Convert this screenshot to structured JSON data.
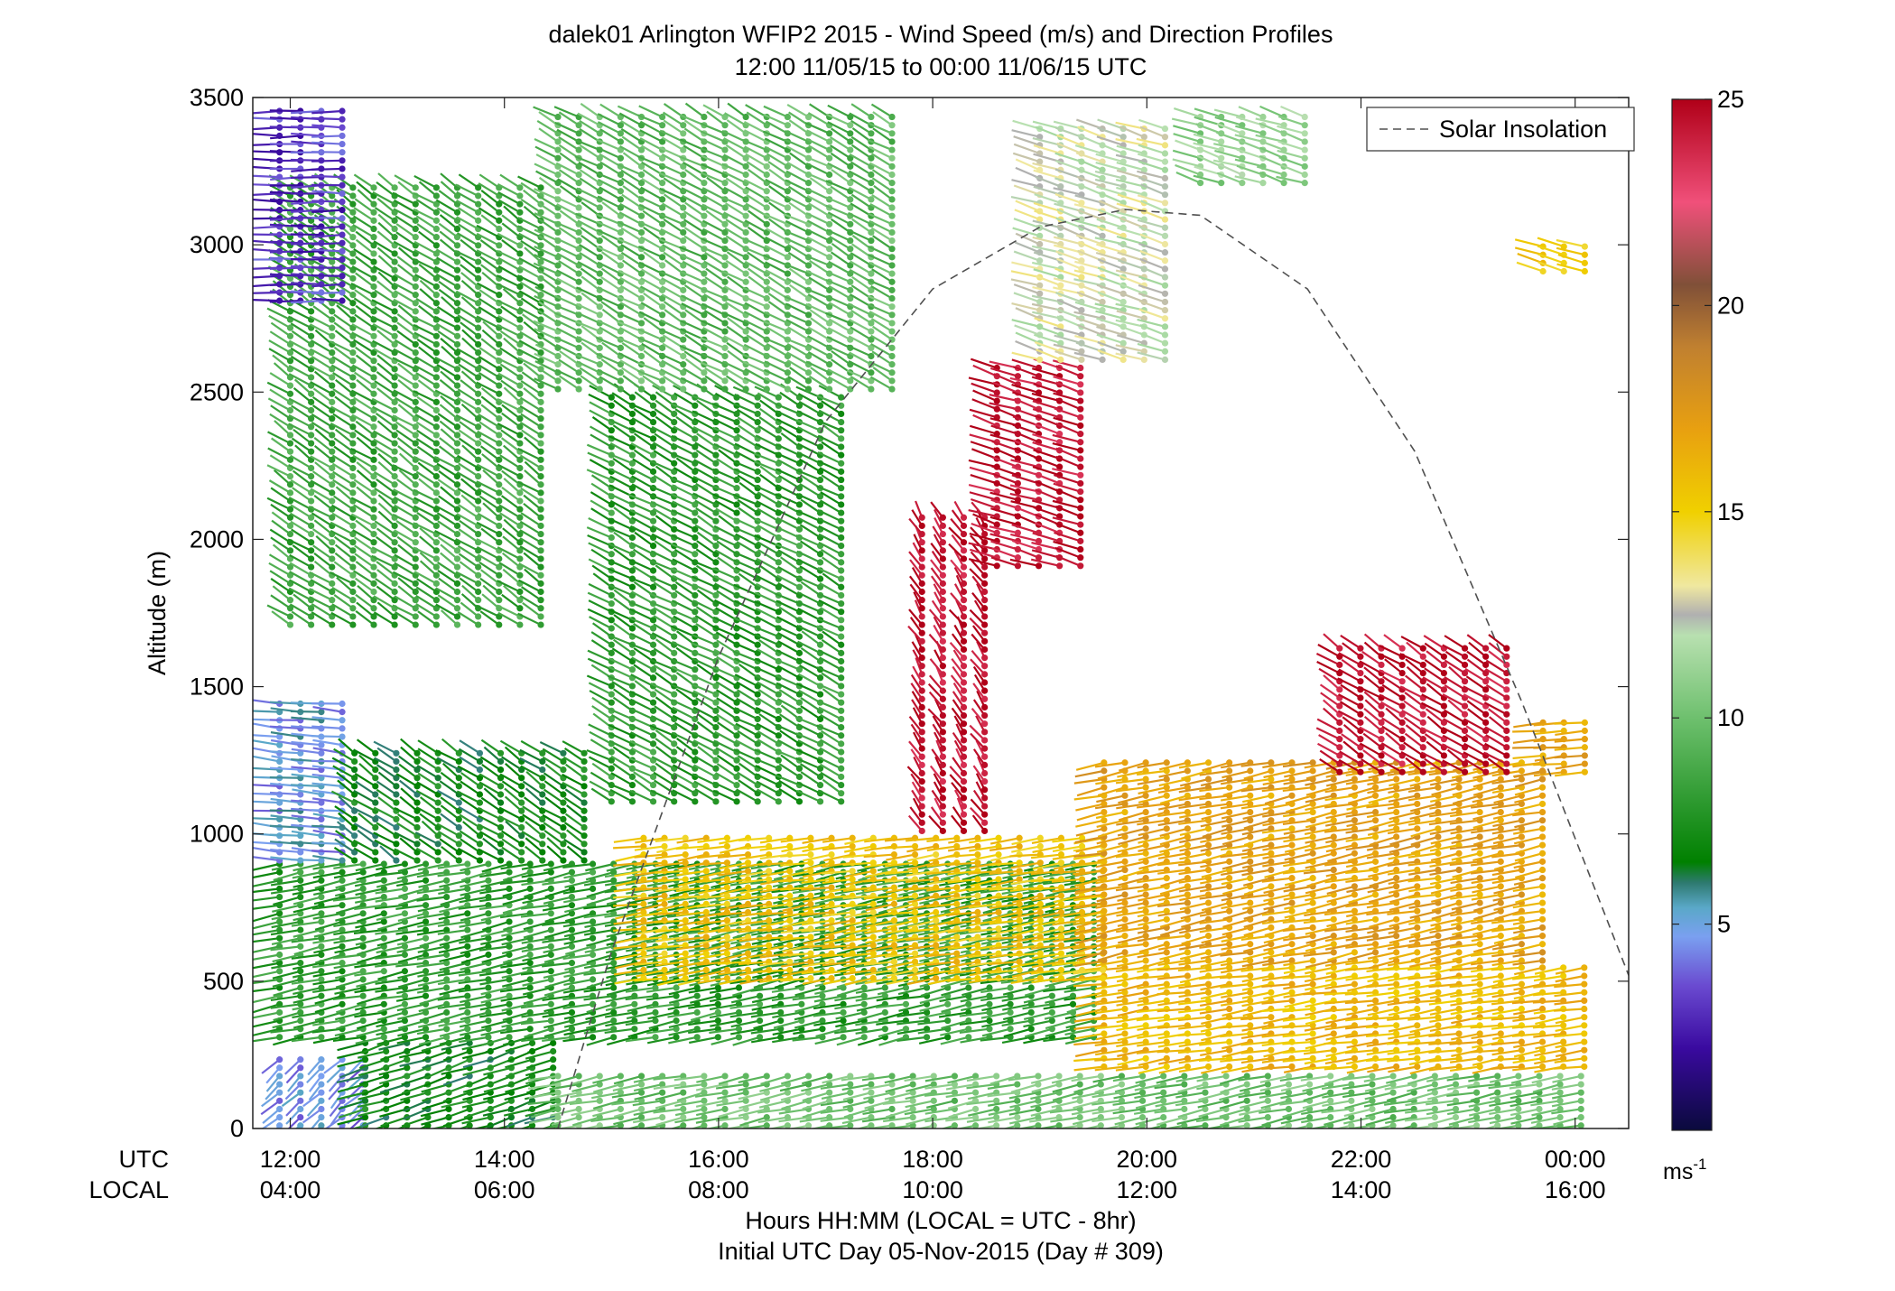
{
  "chart_data": {
    "type": "wind-barb-profile",
    "title": "dalek01 Arlington WFIP2 2015 - Wind Speed (m/s) and Direction Profiles",
    "subtitle": "12:00 11/05/15 to 00:00 11/06/15  UTC",
    "ylabel": "Altitude (m)",
    "xlabel": "Hours HH:MM  (LOCAL = UTC - 8hr)",
    "xlabel2": "Initial UTC Day 05-Nov-2015 (Day # 309)",
    "utc_label": "UTC",
    "local_label": "LOCAL",
    "x_range_hours_utc": [
      11.65,
      24.5
    ],
    "ylim": [
      0,
      3500
    ],
    "y_ticks": [
      0,
      500,
      1000,
      1500,
      2000,
      2500,
      3000,
      3500
    ],
    "x_ticks": [
      {
        "utc_hour": 12,
        "utc": "12:00",
        "local": "04:00"
      },
      {
        "utc_hour": 14,
        "utc": "14:00",
        "local": "06:00"
      },
      {
        "utc_hour": 16,
        "utc": "16:00",
        "local": "08:00"
      },
      {
        "utc_hour": 18,
        "utc": "18:00",
        "local": "10:00"
      },
      {
        "utc_hour": 20,
        "utc": "20:00",
        "local": "12:00"
      },
      {
        "utc_hour": 22,
        "utc": "22:00",
        "local": "14:00"
      },
      {
        "utc_hour": 24,
        "utc": "00:00",
        "local": "16:00"
      }
    ],
    "legend": {
      "entry": "Solar Insolation",
      "style": "dashed",
      "placement": "top-right"
    },
    "solar_insolation_curve": [
      {
        "utc_hour": 14.5,
        "alt": 0
      },
      {
        "utc_hour": 15.0,
        "alt": 600
      },
      {
        "utc_hour": 15.5,
        "alt": 1100
      },
      {
        "utc_hour": 16.0,
        "alt": 1600
      },
      {
        "utc_hour": 17.0,
        "alt": 2400
      },
      {
        "utc_hour": 18.0,
        "alt": 2850
      },
      {
        "utc_hour": 19.0,
        "alt": 3060
      },
      {
        "utc_hour": 19.8,
        "alt": 3120
      },
      {
        "utc_hour": 20.5,
        "alt": 3100
      },
      {
        "utc_hour": 21.5,
        "alt": 2850
      },
      {
        "utc_hour": 22.5,
        "alt": 2300
      },
      {
        "utc_hour": 23.5,
        "alt": 1450
      },
      {
        "utc_hour": 24.5,
        "alt": 520
      }
    ],
    "colorbar": {
      "min": 0,
      "max": 25,
      "ticks": [
        5,
        10,
        15,
        20,
        25
      ],
      "unit_label": "ms",
      "unit_exponent": "-1",
      "stops": [
        {
          "v": 0,
          "c": "#0a0a3c"
        },
        {
          "v": 2,
          "c": "#3a0aa0"
        },
        {
          "v": 3.5,
          "c": "#6a4ad0"
        },
        {
          "v": 4.7,
          "c": "#7aa0f0"
        },
        {
          "v": 5.4,
          "c": "#5aa8c8"
        },
        {
          "v": 6,
          "c": "#2e7a70"
        },
        {
          "v": 6.5,
          "c": "#008000"
        },
        {
          "v": 8,
          "c": "#2e9a30"
        },
        {
          "v": 10,
          "c": "#6ec06e"
        },
        {
          "v": 12,
          "c": "#b8e0b0"
        },
        {
          "v": 12.5,
          "c": "#b0b0b0"
        },
        {
          "v": 13.2,
          "c": "#f0e8a0"
        },
        {
          "v": 15,
          "c": "#f0d000"
        },
        {
          "v": 17,
          "c": "#e8a010"
        },
        {
          "v": 19,
          "c": "#c08030"
        },
        {
          "v": 20.5,
          "c": "#805038"
        },
        {
          "v": 22.5,
          "c": "#f0507a"
        },
        {
          "v": 25,
          "c": "#b00018"
        }
      ]
    },
    "wind_regimes": [
      {
        "t": [
          11.9,
          12.7
        ],
        "alt": [
          0,
          250
        ],
        "speed": 4.5,
        "dir": 210
      },
      {
        "t": [
          12.7,
          14.5
        ],
        "alt": [
          0,
          300
        ],
        "speed": 7,
        "dir": 240
      },
      {
        "t": [
          14.5,
          24.1
        ],
        "alt": [
          0,
          200
        ],
        "speed": 10,
        "dir": 250
      },
      {
        "t": [
          11.9,
          19.6
        ],
        "alt": [
          300,
          900
        ],
        "speed": 8,
        "dir": 250
      },
      {
        "t": [
          19.6,
          24.1
        ],
        "alt": [
          200,
          560
        ],
        "speed": 16,
        "dir": 255
      },
      {
        "t": [
          15.3,
          19.6
        ],
        "alt": [
          500,
          1000
        ],
        "speed": 15.5,
        "dir": 255
      },
      {
        "t": [
          19.6,
          23.8
        ],
        "alt": [
          560,
          1250
        ],
        "speed": 17,
        "dir": 250
      },
      {
        "t": [
          11.9,
          12.6
        ],
        "alt": [
          900,
          1450
        ],
        "speed": 4.8,
        "dir": 280
      },
      {
        "t": [
          12.6,
          14.8
        ],
        "alt": [
          900,
          1300
        ],
        "speed": 7,
        "dir": 320
      },
      {
        "t": [
          15.0,
          17.3
        ],
        "alt": [
          1100,
          2500
        ],
        "speed": 8,
        "dir": 315
      },
      {
        "t": [
          12.0,
          14.5
        ],
        "alt": [
          1700,
          3200
        ],
        "speed": 8.5,
        "dir": 320
      },
      {
        "t": [
          11.9,
          12.5
        ],
        "alt": [
          2800,
          3460
        ],
        "speed": 3,
        "dir": 270
      },
      {
        "t": [
          14.5,
          17.8
        ],
        "alt": [
          2500,
          3450
        ],
        "speed": 9.5,
        "dir": 315
      },
      {
        "t": [
          17.9,
          18.6
        ],
        "alt": [
          1000,
          2100
        ],
        "speed": 24.5,
        "dir": 340
      },
      {
        "t": [
          18.6,
          19.4
        ],
        "alt": [
          1900,
          2600
        ],
        "speed": 24.5,
        "dir": 300
      },
      {
        "t": [
          19.0,
          20.2
        ],
        "alt": [
          2600,
          3400
        ],
        "speed": 12.5,
        "dir": 300
      },
      {
        "t": [
          20.5,
          21.5
        ],
        "alt": [
          3200,
          3450
        ],
        "speed": 11,
        "dir": 300
      },
      {
        "t": [
          21.8,
          23.4
        ],
        "alt": [
          1200,
          1650
        ],
        "speed": 24.5,
        "dir": 320
      },
      {
        "t": [
          23.7,
          24.1
        ],
        "alt": [
          1200,
          1400
        ],
        "speed": 17,
        "dir": 260
      },
      {
        "t": [
          23.7,
          24.1
        ],
        "alt": [
          2900,
          3000
        ],
        "speed": 15.5,
        "dir": 300
      }
    ]
  }
}
